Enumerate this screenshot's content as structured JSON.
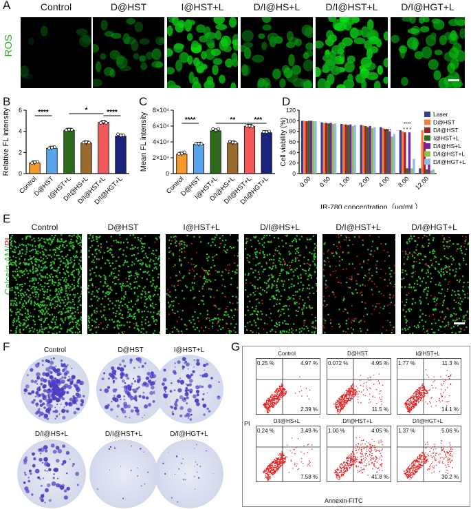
{
  "panelA": {
    "letter": "A",
    "row_label": "ROS",
    "columns": [
      "Control",
      "D@HST",
      "I@HST+L",
      "D/I@HS+L",
      "D/I@HST+L",
      "D/I@HGT+L"
    ]
  },
  "panelB": {
    "letter": "B",
    "ylabel": "Relative FL intensity",
    "yticks": [
      "0",
      "2",
      "4",
      "6"
    ],
    "sig": [
      "****",
      "*",
      "****"
    ],
    "chart_data": {
      "type": "bar",
      "categories": [
        "Control",
        "D@HST",
        "I@HST+L",
        "D/I@HS+L",
        "D/I@HST+L",
        "D/I@HGT+L"
      ],
      "values": [
        1.0,
        2.4,
        4.1,
        2.9,
        4.85,
        3.55
      ],
      "ylim": [
        0,
        6
      ],
      "colors": [
        "#f39a2b",
        "#5aa4ec",
        "#2e6b1f",
        "#9a6a2e",
        "#f05a5a",
        "#1a237e"
      ]
    }
  },
  "panelC": {
    "letter": "C",
    "ylabel": "Mean FL intensity",
    "yticks": [
      "0",
      "2×10⁴",
      "4×10⁴",
      "6×10⁴",
      "8×10⁴"
    ],
    "sig": [
      "****",
      "**",
      "***"
    ],
    "chart_data": {
      "type": "bar",
      "categories": [
        "Control",
        "D@HST",
        "I@HST+L",
        "D/I@HS+L",
        "D/I@HST+L",
        "D/I@HGT+L"
      ],
      "values": [
        24500,
        37000,
        54000,
        38500,
        59500,
        51500
      ],
      "ylim": [
        0,
        80000
      ],
      "colors": [
        "#f39a2b",
        "#5aa4ec",
        "#2e6b1f",
        "#9a6a2e",
        "#f05a5a",
        "#1a237e"
      ]
    }
  },
  "panelD": {
    "letter": "D",
    "ylabel": "Cell viability (%)",
    "xlabel": "IR-780 concentration（μg/mL）",
    "yticks": [
      "0",
      "20",
      "40",
      "60",
      "80",
      "100",
      "120"
    ],
    "chart_data": {
      "type": "bar",
      "categories": [
        "0.00",
        "0.50",
        "1.00",
        "2.00",
        "4.00",
        "8.00",
        "12.00"
      ],
      "ylim": [
        0,
        120
      ],
      "series": [
        {
          "name": "Laser",
          "color": "#3b3b8f",
          "values": [
            100,
            97,
            94,
            92,
            88,
            82,
            10
          ]
        },
        {
          "name": "D@HST",
          "color": "#f47c3c",
          "values": [
            100,
            96,
            93,
            91,
            86,
            80,
            82
          ]
        },
        {
          "name": "D/I@HST",
          "color": "#a31e2a",
          "values": [
            99,
            96,
            93,
            90,
            84,
            78,
            60
          ]
        },
        {
          "name": "I@HST+L",
          "color": "#2e6b1f",
          "values": [
            100,
            95,
            92,
            88,
            84,
            10,
            8
          ]
        },
        {
          "name": "D/I@HS+L",
          "color": "#7b1fa2",
          "values": [
            100,
            96,
            93,
            90,
            80,
            78,
            28
          ]
        },
        {
          "name": "D/I@HST+L",
          "color": "#8bc34a",
          "values": [
            99,
            94,
            90,
            86,
            70,
            10,
            6
          ]
        },
        {
          "name": "D/I@HGT+L",
          "color": "#90b8e8",
          "values": [
            99,
            95,
            92,
            88,
            75,
            28,
            8
          ]
        }
      ]
    }
  },
  "panelE": {
    "letter": "E",
    "row_label_green": "Calcein-AM/",
    "row_label_red": "PI",
    "columns": [
      "Control",
      "D@HST",
      "I@HST+L",
      "D/I@HS+L",
      "D/I@HST+L",
      "D/I@HGT+L"
    ]
  },
  "panelF": {
    "letter": "F",
    "top": [
      "Control",
      "D@HST",
      "I@HST+L"
    ],
    "bottom": [
      "D/I@HS+L",
      "D/I@HST+L",
      "D/I@HGT+L"
    ]
  },
  "panelG": {
    "letter": "G",
    "xaxis": "Annexin-FITC",
    "yaxis": "PI",
    "plots": [
      {
        "title": "Control",
        "q1": "0.25 %",
        "q2": "4.97 %",
        "q3": "2.39 %",
        "q4": ""
      },
      {
        "title": "D@HST",
        "q1": "0.072 %",
        "q2": "4.95 %",
        "q3": "11.5 %",
        "q4": ""
      },
      {
        "title": "I@HST+L",
        "q1": "1.77 %",
        "q2": "11.3 %",
        "q3": "14.1 %",
        "q4": ""
      },
      {
        "title": "D/I@HS+L",
        "q1": "0.24 %",
        "q2": "3.49 %",
        "q3": "7.58 %",
        "q4": ""
      },
      {
        "title": "D/I@HST+L",
        "q1": "1.00 %",
        "q2": "4.05 %",
        "q3": "41.8 %",
        "q4": ""
      },
      {
        "title": "D/I@HGT+L",
        "q1": "1.37 %",
        "q2": "5.06 %",
        "q3": "30.2 %",
        "q4": ""
      }
    ]
  }
}
